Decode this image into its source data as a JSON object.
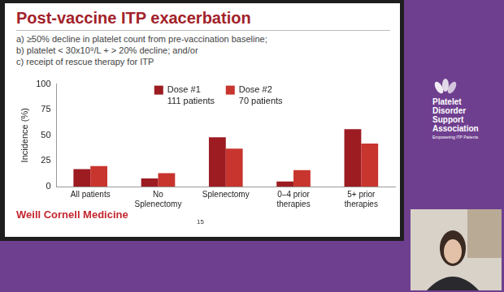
{
  "slide": {
    "title": "Post-vaccine ITP exacerbation",
    "criteria": [
      "a) ≥50% decline in platelet count from pre-vaccination baseline;",
      "b) platelet < 30x10⁹/L + > 20% decline; and/or",
      "c) receipt of rescue therapy for ITP"
    ],
    "footer_logo": "Weill Cornell Medicine",
    "page_number": 15
  },
  "sidebar": {
    "name": [
      "Platelet",
      "Disorder",
      "Support",
      "Association"
    ],
    "tagline": "Empowering ITP Patients"
  },
  "chart_data": {
    "type": "bar",
    "y_label": "Incidence (%)",
    "categories": [
      "All patients",
      [
        "No",
        "Splenectomy"
      ],
      "Splenectomy",
      [
        "0–4 prior",
        "therapies"
      ],
      [
        "5+ prior",
        "therapies"
      ]
    ],
    "series": [
      {
        "name": "Dose #1",
        "label_line2": "111 patients",
        "color": "#9c1c22",
        "values": [
          17,
          8,
          48,
          5,
          56
        ]
      },
      {
        "name": "Dose #2",
        "label_line2": "70 patients",
        "color": "#c8352e",
        "values": [
          20,
          13,
          37,
          16,
          42
        ]
      }
    ],
    "ylim": [
      0,
      100
    ],
    "yticks": [
      0,
      25,
      50,
      75,
      100
    ],
    "grid": false,
    "legend": "top"
  }
}
